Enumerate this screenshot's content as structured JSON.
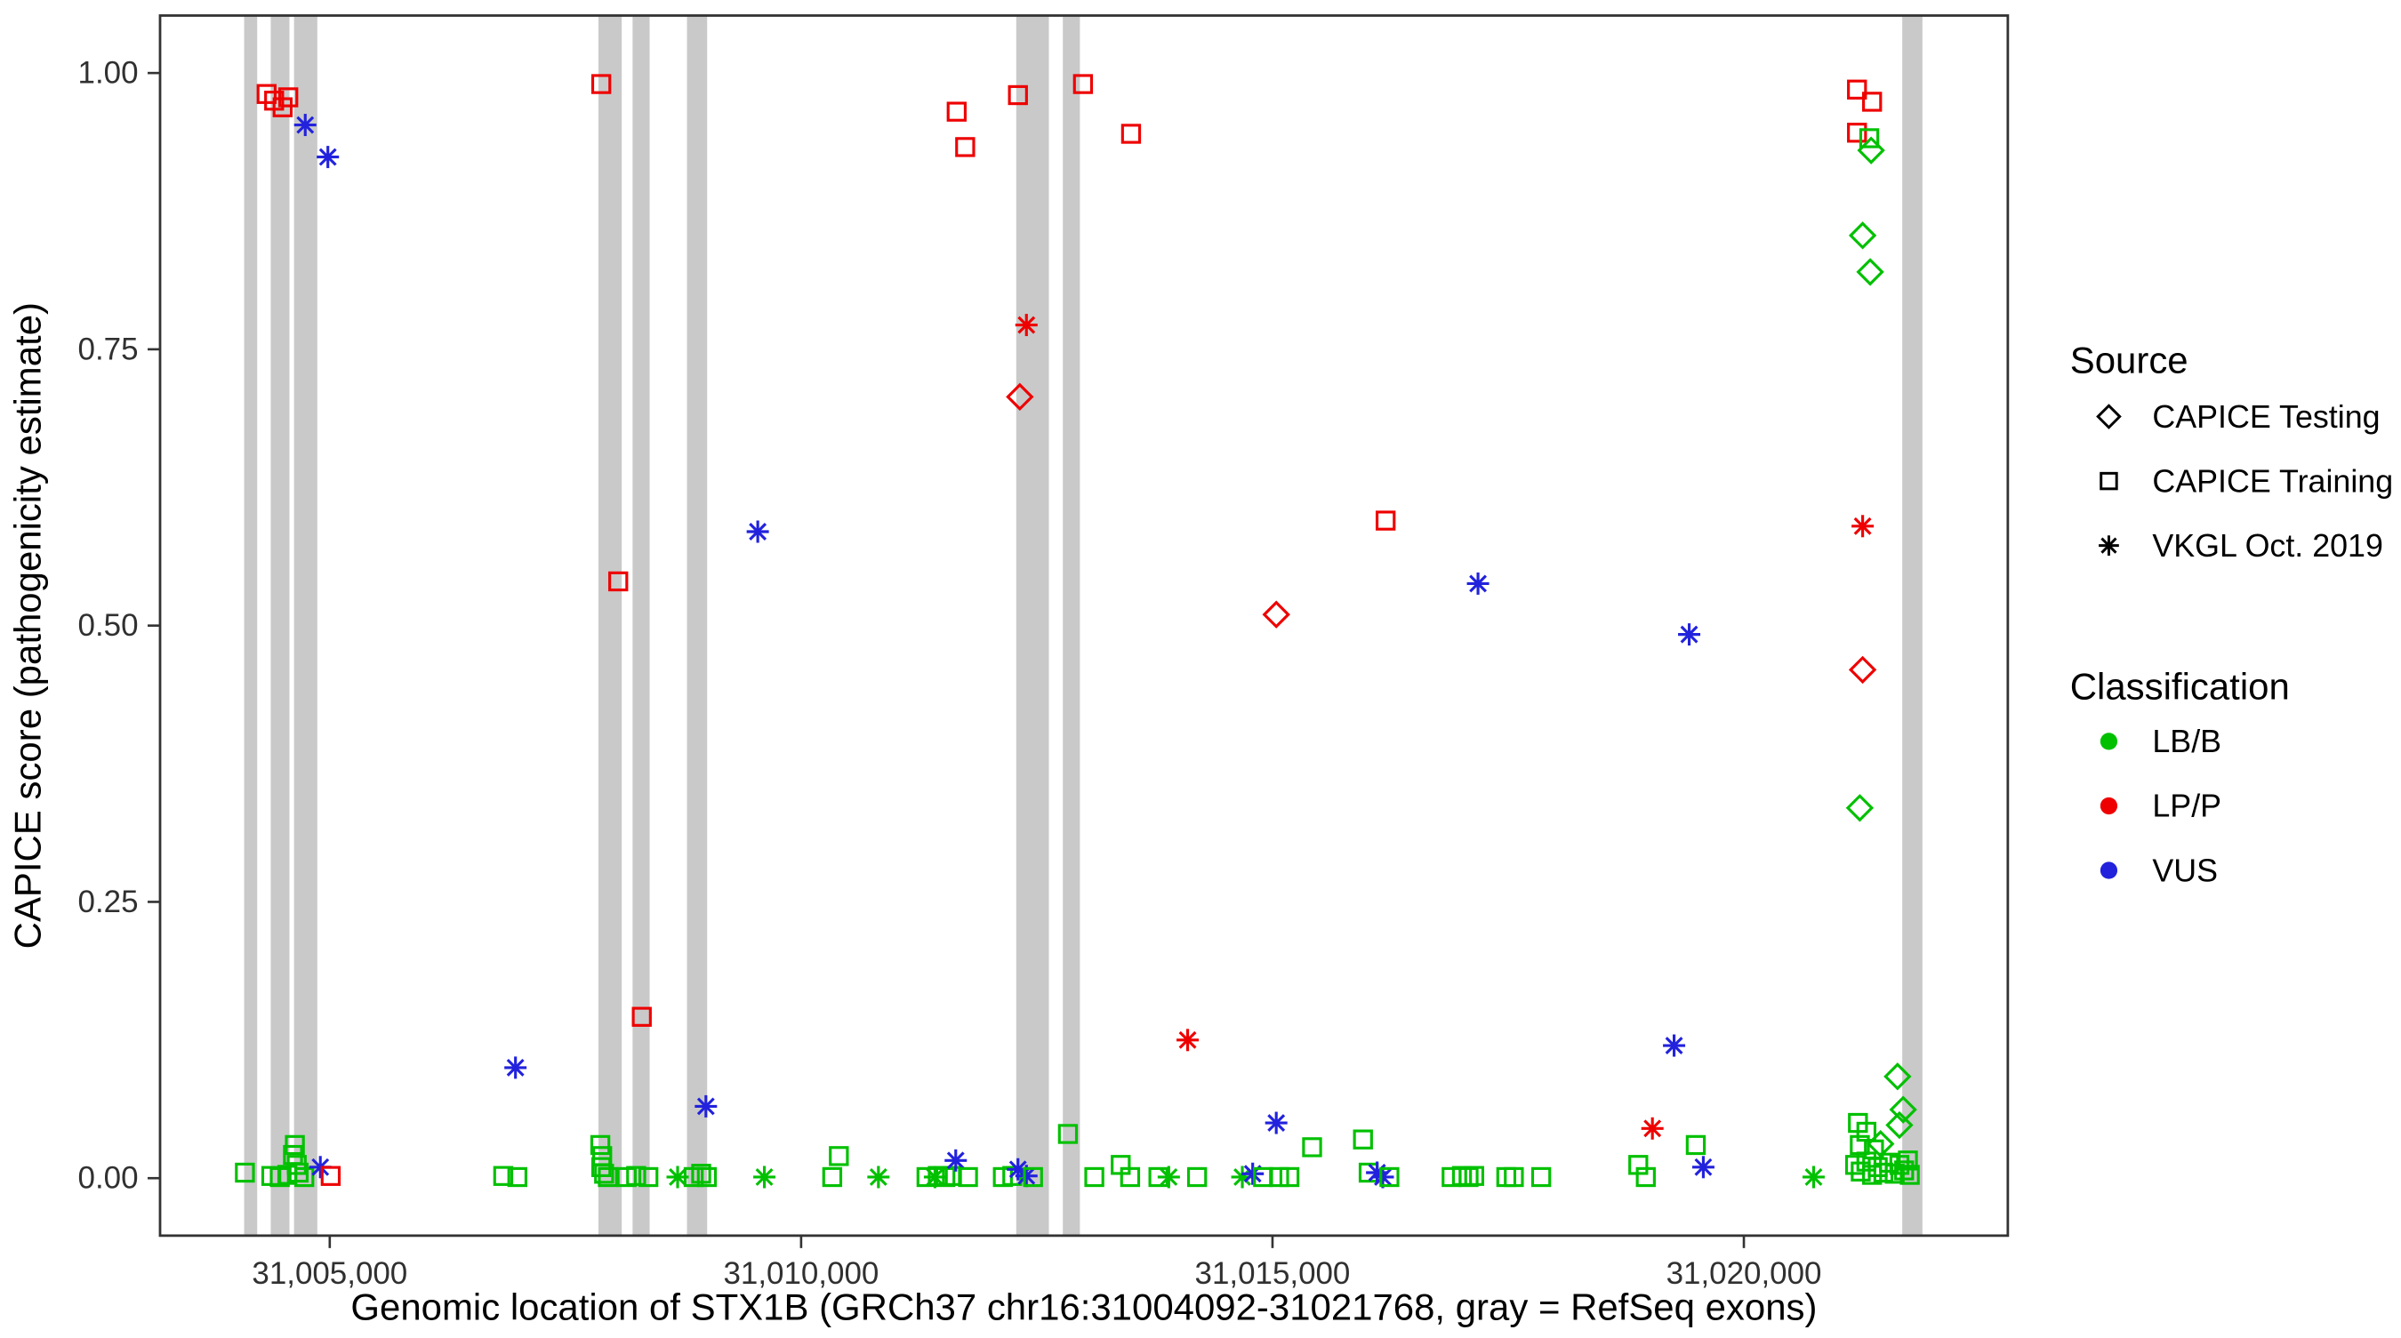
{
  "page": {
    "background": "#FFFFFF"
  },
  "chart_data": {
    "type": "scatter",
    "title": "",
    "xlabel": "Genomic location of STX1B (GRCh37 chr16:31004092-31021768, gray = RefSeq exons)",
    "ylabel": "CAPICE score (pathogenicity estimate)",
    "xlim": [
      31003200,
      31022800
    ],
    "ylim": [
      -0.052,
      1.052
    ],
    "grid": false,
    "x_ticks": [
      {
        "value": 31005000,
        "label": "31,005,000"
      },
      {
        "value": 31010000,
        "label": "31,010,000"
      },
      {
        "value": 31015000,
        "label": "31,015,000"
      },
      {
        "value": 31020000,
        "label": "31,020,000"
      }
    ],
    "y_ticks": [
      {
        "value": 0.0,
        "label": "0.00"
      },
      {
        "value": 0.25,
        "label": "0.25"
      },
      {
        "value": 0.5,
        "label": "0.50"
      },
      {
        "value": 0.75,
        "label": "0.75"
      },
      {
        "value": 1.0,
        "label": "1.00"
      }
    ],
    "colors": {
      "LB/B": "#00C000",
      "LP/P": "#EE0000",
      "VUS": "#2222DD",
      "exon": "#C9C9C9",
      "axis": "#333333",
      "legend_symbol": "#000000"
    },
    "source_shapes": {
      "testing": "diamond",
      "training": "square",
      "vkgl": "asterisk"
    },
    "legend": {
      "source": {
        "title": "Source",
        "items": [
          {
            "key": "testing",
            "label": "CAPICE Testing",
            "shape": "diamond"
          },
          {
            "key": "training",
            "label": "CAPICE Training",
            "shape": "square"
          },
          {
            "key": "vkgl",
            "label": "VKGL Oct. 2019",
            "shape": "asterisk"
          }
        ]
      },
      "classification": {
        "title": "Classification",
        "items": [
          {
            "key": "LB/B",
            "label": "LB/B"
          },
          {
            "key": "LP/P",
            "label": "LP/P"
          },
          {
            "key": "VUS",
            "label": "VUS"
          }
        ]
      }
    },
    "exons_note": "gray = RefSeq exons, drawn as full-height vertical bands",
    "exons": [
      [
        31004092,
        31004230
      ],
      [
        31004374,
        31004572
      ],
      [
        31004621,
        31004868
      ],
      [
        31007850,
        31008097
      ],
      [
        31008212,
        31008393
      ],
      [
        31008789,
        31009003
      ],
      [
        31012282,
        31012628
      ],
      [
        31012776,
        31012957
      ],
      [
        31021680,
        31021894
      ]
    ],
    "point_format": [
      "genomic_position",
      "capice_score",
      "source",
      "classification"
    ],
    "points": [
      [
        31004330,
        0.981,
        "training",
        "LP/P"
      ],
      [
        31004410,
        0.975,
        "training",
        "LP/P"
      ],
      [
        31004500,
        0.969,
        "training",
        "LP/P"
      ],
      [
        31004560,
        0.978,
        "training",
        "LP/P"
      ],
      [
        31004740,
        0.953,
        "vkgl",
        "VUS"
      ],
      [
        31004980,
        0.924,
        "vkgl",
        "VUS"
      ],
      [
        31004100,
        0.005,
        "training",
        "LB/B"
      ],
      [
        31004380,
        0.002,
        "training",
        "LB/B"
      ],
      [
        31004470,
        0.001,
        "training",
        "LB/B"
      ],
      [
        31004550,
        0.003,
        "training",
        "LB/B"
      ],
      [
        31004630,
        0.03,
        "training",
        "LB/B"
      ],
      [
        31004610,
        0.021,
        "training",
        "LB/B"
      ],
      [
        31004650,
        0.012,
        "training",
        "LB/B"
      ],
      [
        31004670,
        0.005,
        "training",
        "LB/B"
      ],
      [
        31004730,
        0.001,
        "training",
        "LB/B"
      ],
      [
        31004900,
        0.01,
        "vkgl",
        "VUS"
      ],
      [
        31005010,
        0.002,
        "training",
        "LP/P"
      ],
      [
        31006840,
        0.002,
        "training",
        "LB/B"
      ],
      [
        31006990,
        0.001,
        "training",
        "LB/B"
      ],
      [
        31006970,
        0.1,
        "vkgl",
        "VUS"
      ],
      [
        31007880,
        0.99,
        "training",
        "LP/P"
      ],
      [
        31008060,
        0.54,
        "training",
        "LP/P"
      ],
      [
        31008310,
        0.146,
        "training",
        "LP/P"
      ],
      [
        31007870,
        0.03,
        "training",
        "LB/B"
      ],
      [
        31007890,
        0.02,
        "training",
        "LB/B"
      ],
      [
        31007880,
        0.01,
        "training",
        "LB/B"
      ],
      [
        31007910,
        0.004,
        "training",
        "LB/B"
      ],
      [
        31007950,
        0.001,
        "training",
        "LB/B"
      ],
      [
        31008150,
        0.001,
        "training",
        "LB/B"
      ],
      [
        31008250,
        0.002,
        "training",
        "LB/B"
      ],
      [
        31008380,
        0.001,
        "training",
        "LB/B"
      ],
      [
        31008690,
        0.001,
        "vkgl",
        "LB/B"
      ],
      [
        31008860,
        0.001,
        "training",
        "LB/B"
      ],
      [
        31008940,
        0.004,
        "training",
        "LB/B"
      ],
      [
        31009000,
        0.001,
        "training",
        "LB/B"
      ],
      [
        31008990,
        0.065,
        "vkgl",
        "VUS"
      ],
      [
        31009540,
        0.585,
        "vkgl",
        "VUS"
      ],
      [
        31009610,
        0.001,
        "vkgl",
        "LB/B"
      ],
      [
        31010330,
        0.001,
        "training",
        "LB/B"
      ],
      [
        31010400,
        0.02,
        "training",
        "LB/B"
      ],
      [
        31010820,
        0.001,
        "vkgl",
        "LB/B"
      ],
      [
        31011330,
        0.001,
        "training",
        "LB/B"
      ],
      [
        31011420,
        0.001,
        "vkgl",
        "LB/B"
      ],
      [
        31011450,
        0.002,
        "training",
        "LB/B"
      ],
      [
        31011530,
        0.001,
        "training",
        "LB/B"
      ],
      [
        31011600,
        0.002,
        "training",
        "LB/B"
      ],
      [
        31011650,
        0.965,
        "training",
        "LP/P"
      ],
      [
        31011740,
        0.933,
        "training",
        "LP/P"
      ],
      [
        31011640,
        0.016,
        "vkgl",
        "VUS"
      ],
      [
        31011770,
        0.001,
        "training",
        "LB/B"
      ],
      [
        31012140,
        0.001,
        "training",
        "LB/B"
      ],
      [
        31012240,
        0.002,
        "training",
        "LB/B"
      ],
      [
        31012300,
        0.98,
        "training",
        "LP/P"
      ],
      [
        31012390,
        0.772,
        "vkgl",
        "LP/P"
      ],
      [
        31012320,
        0.707,
        "testing",
        "LP/P"
      ],
      [
        31012300,
        0.008,
        "vkgl",
        "VUS"
      ],
      [
        31012390,
        0.002,
        "vkgl",
        "VUS"
      ],
      [
        31012460,
        0.001,
        "training",
        "LB/B"
      ],
      [
        31012830,
        0.04,
        "training",
        "LB/B"
      ],
      [
        31012990,
        0.99,
        "training",
        "LP/P"
      ],
      [
        31013110,
        0.001,
        "training",
        "LB/B"
      ],
      [
        31013390,
        0.012,
        "training",
        "LB/B"
      ],
      [
        31013500,
        0.945,
        "training",
        "LP/P"
      ],
      [
        31013490,
        0.001,
        "training",
        "LB/B"
      ],
      [
        31013790,
        0.001,
        "training",
        "LB/B"
      ],
      [
        31013900,
        0.001,
        "vkgl",
        "LB/B"
      ],
      [
        31014100,
        0.125,
        "vkgl",
        "LP/P"
      ],
      [
        31014200,
        0.001,
        "training",
        "LB/B"
      ],
      [
        31014680,
        0.001,
        "vkgl",
        "LB/B"
      ],
      [
        31014790,
        0.004,
        "vkgl",
        "VUS"
      ],
      [
        31014900,
        0.001,
        "training",
        "LB/B"
      ],
      [
        31015040,
        0.51,
        "testing",
        "LP/P"
      ],
      [
        31015040,
        0.05,
        "vkgl",
        "VUS"
      ],
      [
        31015070,
        0.001,
        "training",
        "LB/B"
      ],
      [
        31015180,
        0.001,
        "training",
        "LB/B"
      ],
      [
        31015420,
        0.028,
        "training",
        "LB/B"
      ],
      [
        31015960,
        0.035,
        "training",
        "LB/B"
      ],
      [
        31016020,
        0.005,
        "training",
        "LB/B"
      ],
      [
        31016110,
        0.005,
        "vkgl",
        "VUS"
      ],
      [
        31016170,
        0.001,
        "vkgl",
        "VUS"
      ],
      [
        31016240,
        0.001,
        "training",
        "LB/B"
      ],
      [
        31016200,
        0.595,
        "training",
        "LP/P"
      ],
      [
        31016900,
        0.001,
        "training",
        "LB/B"
      ],
      [
        31017010,
        0.002,
        "training",
        "LB/B"
      ],
      [
        31017080,
        0.001,
        "training",
        "LB/B"
      ],
      [
        31017140,
        0.002,
        "training",
        "LB/B"
      ],
      [
        31017180,
        0.538,
        "vkgl",
        "VUS"
      ],
      [
        31017480,
        0.001,
        "training",
        "LB/B"
      ],
      [
        31017560,
        0.001,
        "training",
        "LB/B"
      ],
      [
        31017850,
        0.001,
        "training",
        "LB/B"
      ],
      [
        31018880,
        0.012,
        "training",
        "LB/B"
      ],
      [
        31018960,
        0.001,
        "training",
        "LB/B"
      ],
      [
        31019030,
        0.045,
        "vkgl",
        "LP/P"
      ],
      [
        31019260,
        0.12,
        "vkgl",
        "VUS"
      ],
      [
        31019420,
        0.492,
        "vkgl",
        "VUS"
      ],
      [
        31019490,
        0.03,
        "training",
        "LB/B"
      ],
      [
        31019570,
        0.01,
        "vkgl",
        "VUS"
      ],
      [
        31020740,
        0.001,
        "vkgl",
        "LB/B"
      ],
      [
        31021200,
        0.985,
        "training",
        "LP/P"
      ],
      [
        31021360,
        0.974,
        "training",
        "LP/P"
      ],
      [
        31021200,
        0.946,
        "training",
        "LP/P"
      ],
      [
        31021330,
        0.941,
        "training",
        "LB/B"
      ],
      [
        31021350,
        0.93,
        "testing",
        "LB/B"
      ],
      [
        31021260,
        0.853,
        "testing",
        "LB/B"
      ],
      [
        31021340,
        0.82,
        "testing",
        "LB/B"
      ],
      [
        31021260,
        0.59,
        "vkgl",
        "LP/P"
      ],
      [
        31021260,
        0.46,
        "testing",
        "LP/P"
      ],
      [
        31021230,
        0.335,
        "testing",
        "LB/B"
      ],
      [
        31021630,
        0.092,
        "testing",
        "LB/B"
      ],
      [
        31021690,
        0.062,
        "testing",
        "LB/B"
      ],
      [
        31021650,
        0.048,
        "testing",
        "LB/B"
      ],
      [
        31021210,
        0.05,
        "training",
        "LB/B"
      ],
      [
        31021300,
        0.042,
        "training",
        "LB/B"
      ],
      [
        31021230,
        0.03,
        "training",
        "LB/B"
      ],
      [
        31021380,
        0.026,
        "training",
        "LB/B"
      ],
      [
        31021450,
        0.031,
        "testing",
        "LB/B"
      ],
      [
        31021180,
        0.012,
        "training",
        "LB/B"
      ],
      [
        31021240,
        0.006,
        "training",
        "LB/B"
      ],
      [
        31021300,
        0.015,
        "training",
        "LB/B"
      ],
      [
        31021360,
        0.003,
        "training",
        "LB/B"
      ],
      [
        31021420,
        0.01,
        "training",
        "LB/B"
      ],
      [
        31021480,
        0.005,
        "training",
        "LB/B"
      ],
      [
        31021540,
        0.014,
        "training",
        "LB/B"
      ],
      [
        31021600,
        0.004,
        "training",
        "LB/B"
      ],
      [
        31021650,
        0.012,
        "training",
        "LB/B"
      ],
      [
        31021700,
        0.007,
        "training",
        "LB/B"
      ],
      [
        31021740,
        0.016,
        "training",
        "LB/B"
      ],
      [
        31021760,
        0.003,
        "training",
        "LB/B"
      ]
    ]
  }
}
